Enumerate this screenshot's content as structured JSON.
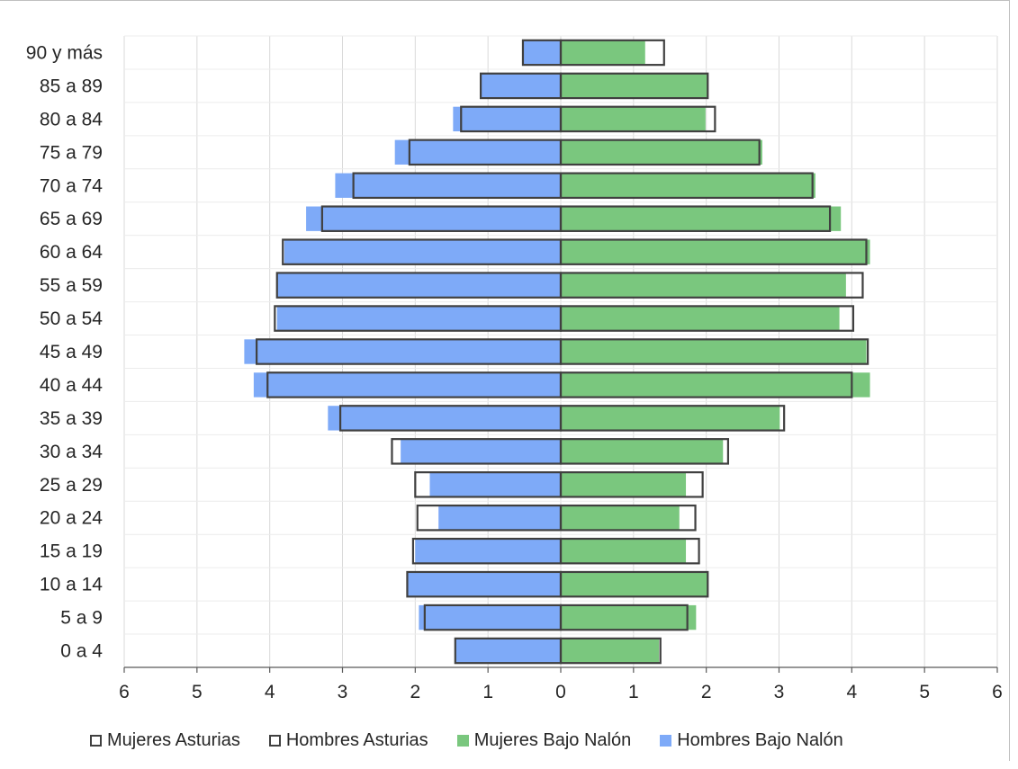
{
  "chart_data": {
    "type": "bar",
    "orientation": "horizontal",
    "categories": [
      "90 y más",
      "85 a 89",
      "80 a 84",
      "75 a 79",
      "70 a 74",
      "65 a 69",
      "60 a 64",
      "55 a 59",
      "50 a 54",
      "45 a 49",
      "40 a 44",
      "35 a 39",
      "30 a 34",
      "25 a 29",
      "20 a 24",
      "15 a 19",
      "10 a 14",
      "5 a 9",
      "0 a 4"
    ],
    "series": [
      {
        "name": "Mujeres Asturias",
        "side": "right",
        "style": "outline",
        "color": "#404040",
        "values": [
          1.42,
          2.02,
          2.12,
          2.73,
          3.46,
          3.7,
          4.2,
          4.15,
          4.02,
          4.22,
          4.0,
          3.07,
          2.3,
          1.95,
          1.85,
          1.9,
          2.02,
          1.74,
          1.37
        ]
      },
      {
        "name": "Hombres Asturias",
        "side": "left",
        "style": "outline",
        "color": "#404040",
        "values": [
          0.52,
          1.1,
          1.37,
          2.08,
          2.85,
          3.28,
          3.82,
          3.9,
          3.93,
          4.18,
          4.03,
          3.03,
          2.32,
          2.0,
          1.97,
          2.03,
          2.11,
          1.87,
          1.45
        ]
      },
      {
        "name": "Mujeres Bajo Nalón",
        "side": "right",
        "style": "fill",
        "color": "#7ac77e",
        "values": [
          1.16,
          2.03,
          1.99,
          2.77,
          3.5,
          3.85,
          4.25,
          3.92,
          3.83,
          4.2,
          4.25,
          3.01,
          2.23,
          1.72,
          1.63,
          1.72,
          2.03,
          1.86,
          1.35
        ]
      },
      {
        "name": "Hombres Bajo Nalón",
        "side": "left",
        "style": "fill",
        "color": "#7eaaf8",
        "values": [
          0.52,
          1.1,
          1.48,
          2.28,
          3.1,
          3.5,
          3.8,
          3.9,
          3.9,
          4.35,
          4.22,
          3.2,
          2.2,
          1.8,
          1.68,
          2.0,
          2.1,
          1.95,
          1.45
        ]
      }
    ],
    "x_tick_labels": [
      "6",
      "5",
      "4",
      "3",
      "2",
      "1",
      "0",
      "1",
      "2",
      "3",
      "4",
      "5",
      "6"
    ],
    "xlim": [
      -6,
      6
    ],
    "grid": "vertical",
    "legend_position": "bottom"
  }
}
